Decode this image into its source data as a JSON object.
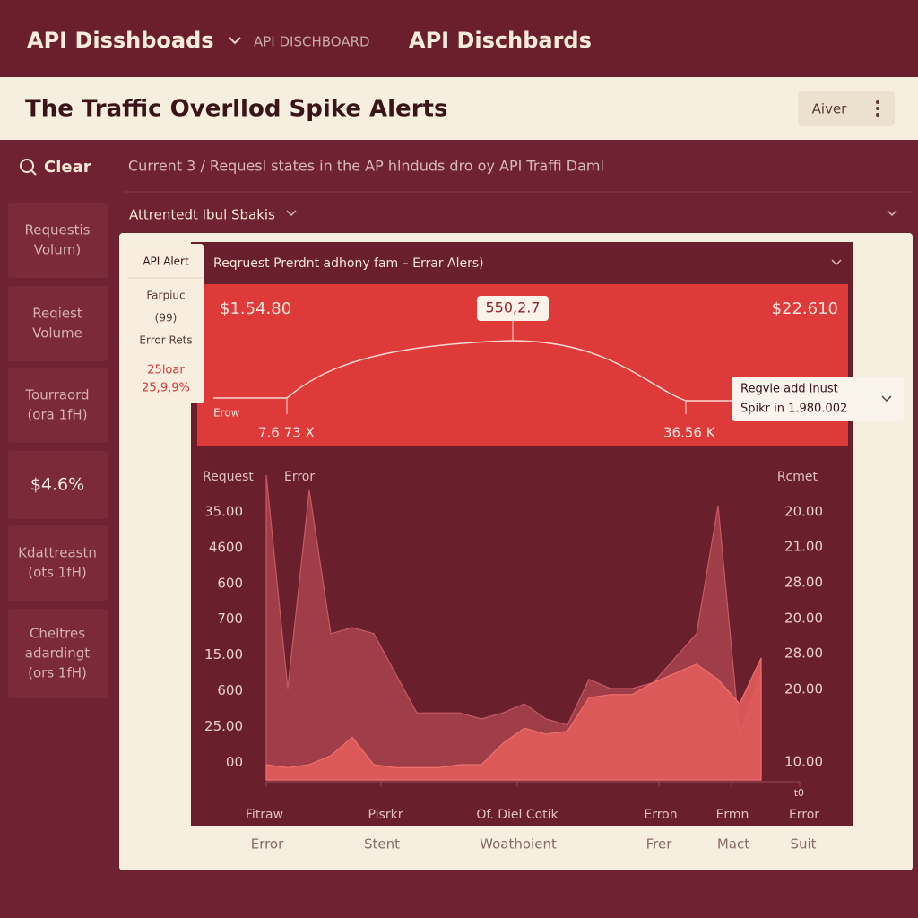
{
  "header": {
    "app_title": "API Disshboads",
    "breadcrumb": "API DISCHBOARD",
    "page_title": "API Dischbards"
  },
  "banner": {
    "title": "The Traffic Overllod Spike Alerts",
    "button": "Aiver"
  },
  "sidebar": {
    "search": "Clear",
    "cards": [
      [
        "Requestis",
        "Volum)"
      ],
      [
        "Reqiest",
        "Volume"
      ],
      [
        "Tourraord",
        "(ora 1fH)"
      ],
      [
        "$4.6%"
      ],
      [
        "Kdattreastn",
        "(ots 1fH)"
      ],
      [
        "Cheltres",
        "adardingt",
        "(ors 1fH)"
      ]
    ]
  },
  "description": "Current 3 / Requesl states in the AP hlnduds dro oy API Traffi Daml",
  "section": "Attrentedt Ibul Sbakis",
  "alert_popup": {
    "title": "API Alert",
    "lines": [
      "Farpiuc",
      "(99)",
      "Error Rets"
    ],
    "highlight": [
      "25loar",
      "25,9,9%"
    ]
  },
  "chart_header": "Reqruest Prerdnt adhony fam – Errar Alers)",
  "summary": {
    "left_value": "$1.54.80",
    "right_value": "$22.610",
    "peak_value": "550,2.7",
    "baseline": "Erow",
    "left_marker": "7.6 73 X",
    "right_marker": "36.56 K"
  },
  "tooltip": [
    "Regvie add inust",
    "Spikr in 1.980.002"
  ],
  "chart_data": {
    "type": "area",
    "categories": [
      null,
      null,
      null,
      null,
      null,
      null,
      null,
      null,
      null,
      null,
      null,
      null,
      null,
      null,
      null,
      null,
      null,
      null,
      null,
      null,
      null,
      null,
      null,
      null
    ],
    "series": [
      {
        "name": "Request",
        "color": "#a8444e",
        "values": [
          100,
          30,
          95,
          48,
          50,
          48,
          35,
          22,
          22,
          22,
          20,
          22,
          25,
          20,
          18,
          33,
          30,
          30,
          32,
          40,
          48,
          90,
          15,
          35
        ]
      },
      {
        "name": "Error",
        "color": "#e25c5c",
        "values": [
          5,
          4,
          5,
          8,
          14,
          5,
          4,
          4,
          4,
          5,
          5,
          12,
          17,
          15,
          16,
          27,
          28,
          28,
          32,
          35,
          38,
          33,
          25,
          40
        ]
      }
    ],
    "ylim": [
      0,
      100
    ],
    "y_axis_labels": [
      "35.00",
      "4600",
      "600",
      "700",
      "15.00",
      "600",
      "25.00",
      "00"
    ],
    "y2_axis_title": "Rcmet",
    "y2_axis_labels": [
      "20.00",
      "21.00",
      "28.00",
      "20.00",
      "28.00",
      "20.00",
      "10.00",
      "t0"
    ],
    "x_axis_labels": [
      "Fitraw",
      "Pisrkr",
      "Of. Diel Cotik",
      "Erron",
      "Ermn",
      "Error"
    ],
    "x_axis_labels_2": [
      "Error",
      "Stent",
      "Woathoient",
      "Frer",
      "Mact",
      "Suit"
    ]
  }
}
